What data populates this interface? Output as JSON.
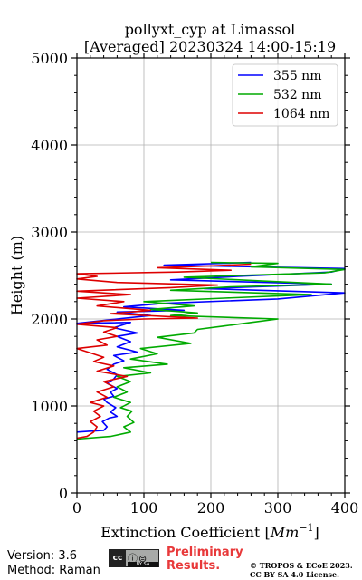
{
  "chart_data": {
    "type": "line",
    "title": "pollyxt_cyp at Limassol",
    "subtitle": "[Averaged] 20230324 14:00-15:19",
    "xlabel_text": "Extinction Coefficient [",
    "xlabel_unit": "Mm",
    "xlabel_exp": "−1",
    "xlabel_close": "]",
    "ylabel": "Height (m)",
    "xlim": [
      0,
      400
    ],
    "ylim": [
      0,
      5000
    ],
    "xticks": [
      "0",
      "100",
      "200",
      "300",
      "400"
    ],
    "yticks": [
      "0",
      "1000",
      "2000",
      "3000",
      "4000",
      "5000"
    ],
    "grid": true,
    "legend_position": "top-right",
    "series": [
      {
        "name": "355 nm",
        "color": "#0000ff",
        "points": [
          [
            0,
            700
          ],
          [
            20,
            710
          ],
          [
            40,
            720
          ],
          [
            45,
            760
          ],
          [
            38,
            820
          ],
          [
            48,
            860
          ],
          [
            60,
            880
          ],
          [
            50,
            930
          ],
          [
            58,
            980
          ],
          [
            45,
            1040
          ],
          [
            40,
            1080
          ],
          [
            55,
            1110
          ],
          [
            50,
            1160
          ],
          [
            60,
            1200
          ],
          [
            45,
            1260
          ],
          [
            55,
            1310
          ],
          [
            60,
            1360
          ],
          [
            45,
            1420
          ],
          [
            55,
            1480
          ],
          [
            70,
            1520
          ],
          [
            55,
            1580
          ],
          [
            90,
            1620
          ],
          [
            60,
            1680
          ],
          [
            80,
            1740
          ],
          [
            60,
            1800
          ],
          [
            90,
            1840
          ],
          [
            55,
            1900
          ],
          [
            80,
            1960
          ],
          [
            0,
            1950
          ],
          [
            60,
            2000
          ],
          [
            110,
            2040
          ],
          [
            60,
            2080
          ],
          [
            160,
            2100
          ],
          [
            70,
            2140
          ],
          [
            130,
            2180
          ],
          [
            300,
            2230
          ],
          [
            400,
            2300
          ],
          [
            190,
            2350
          ],
          [
            380,
            2400
          ],
          [
            140,
            2450
          ],
          [
            240,
            2490
          ],
          [
            380,
            2540
          ],
          [
            400,
            2580
          ],
          [
            130,
            2620
          ],
          [
            260,
            2650
          ]
        ]
      },
      {
        "name": "532 nm",
        "color": "#00aa00",
        "points": [
          [
            0,
            620
          ],
          [
            50,
            650
          ],
          [
            80,
            700
          ],
          [
            70,
            760
          ],
          [
            85,
            810
          ],
          [
            75,
            880
          ],
          [
            82,
            940
          ],
          [
            65,
            980
          ],
          [
            80,
            1040
          ],
          [
            55,
            1100
          ],
          [
            75,
            1160
          ],
          [
            60,
            1220
          ],
          [
            80,
            1280
          ],
          [
            60,
            1340
          ],
          [
            110,
            1380
          ],
          [
            70,
            1440
          ],
          [
            135,
            1480
          ],
          [
            80,
            1540
          ],
          [
            120,
            1600
          ],
          [
            95,
            1660
          ],
          [
            170,
            1720
          ],
          [
            120,
            1790
          ],
          [
            175,
            1840
          ],
          [
            180,
            1880
          ],
          [
            220,
            1920
          ],
          [
            260,
            1960
          ],
          [
            300,
            2000
          ],
          [
            140,
            2040
          ],
          [
            180,
            2070
          ],
          [
            110,
            2110
          ],
          [
            175,
            2150
          ],
          [
            100,
            2200
          ],
          [
            220,
            2240
          ],
          [
            350,
            2280
          ],
          [
            140,
            2330
          ],
          [
            230,
            2370
          ],
          [
            380,
            2400
          ],
          [
            270,
            2440
          ],
          [
            160,
            2480
          ],
          [
            370,
            2530
          ],
          [
            400,
            2570
          ],
          [
            260,
            2600
          ],
          [
            300,
            2640
          ],
          [
            200,
            2650
          ]
        ]
      },
      {
        "name": "1064 nm",
        "color": "#dd0000",
        "points": [
          [
            0,
            630
          ],
          [
            15,
            650
          ],
          [
            25,
            700
          ],
          [
            30,
            760
          ],
          [
            20,
            820
          ],
          [
            35,
            880
          ],
          [
            25,
            940
          ],
          [
            40,
            1000
          ],
          [
            20,
            1040
          ],
          [
            45,
            1100
          ],
          [
            30,
            1160
          ],
          [
            55,
            1220
          ],
          [
            40,
            1280
          ],
          [
            75,
            1340
          ],
          [
            30,
            1400
          ],
          [
            55,
            1460
          ],
          [
            25,
            1510
          ],
          [
            40,
            1560
          ],
          [
            20,
            1610
          ],
          [
            0,
            1660
          ],
          [
            45,
            1700
          ],
          [
            30,
            1760
          ],
          [
            60,
            1800
          ],
          [
            40,
            1850
          ],
          [
            60,
            1900
          ],
          [
            0,
            1940
          ],
          [
            40,
            1980
          ],
          [
            100,
            2000
          ],
          [
            180,
            2010
          ],
          [
            50,
            2060
          ],
          [
            110,
            2100
          ],
          [
            30,
            2150
          ],
          [
            70,
            2200
          ],
          [
            0,
            2240
          ],
          [
            80,
            2280
          ],
          [
            0,
            2320
          ],
          [
            140,
            2360
          ],
          [
            210,
            2390
          ],
          [
            60,
            2420
          ],
          [
            0,
            2460
          ],
          [
            30,
            2490
          ],
          [
            0,
            2520
          ],
          [
            150,
            2540
          ],
          [
            230,
            2560
          ],
          [
            120,
            2590
          ],
          [
            200,
            2610
          ],
          [
            260,
            2630
          ]
        ]
      }
    ]
  },
  "footer": {
    "version": "Version: 3.6",
    "method": "Method: Raman",
    "license_badge_left": "cc",
    "license_badge_right": "ⓘ⊜",
    "license_badge_bottom": "BY   SA",
    "preliminary_line1": "Preliminary",
    "preliminary_line2": "Results.",
    "copyright_line1": "© TROPOS & ECoE 2023.",
    "copyright_line2": "CC BY SA 4.0 License."
  }
}
